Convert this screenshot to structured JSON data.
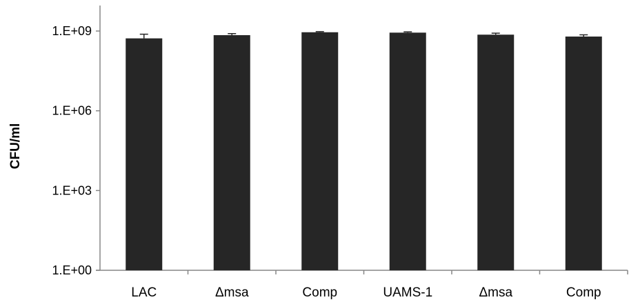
{
  "chart_data": {
    "type": "bar",
    "title": "",
    "xlabel": "",
    "ylabel": "CFU/ml",
    "yscale": "log",
    "ylim": [
      1,
      1000000000
    ],
    "grid": false,
    "legend": "none",
    "yticks": [
      {
        "value": 1,
        "label": "1.E+00"
      },
      {
        "value": 1000,
        "label": "1.E+03"
      },
      {
        "value": 1000000,
        "label": "1.E+06"
      },
      {
        "value": 1000000000,
        "label": "1.E+09"
      }
    ],
    "categories": [
      "LAC",
      "Δmsa",
      "Comp",
      "UAMS-1",
      "Δmsa",
      "Comp"
    ],
    "values": [
      530000000,
      700000000,
      900000000,
      870000000,
      730000000,
      620000000
    ],
    "error_upper": [
      760000000,
      800000000,
      950000000,
      930000000,
      830000000,
      720000000
    ],
    "colors": {
      "bar": "#262626",
      "axis": "#868686",
      "text": "#000000"
    }
  }
}
